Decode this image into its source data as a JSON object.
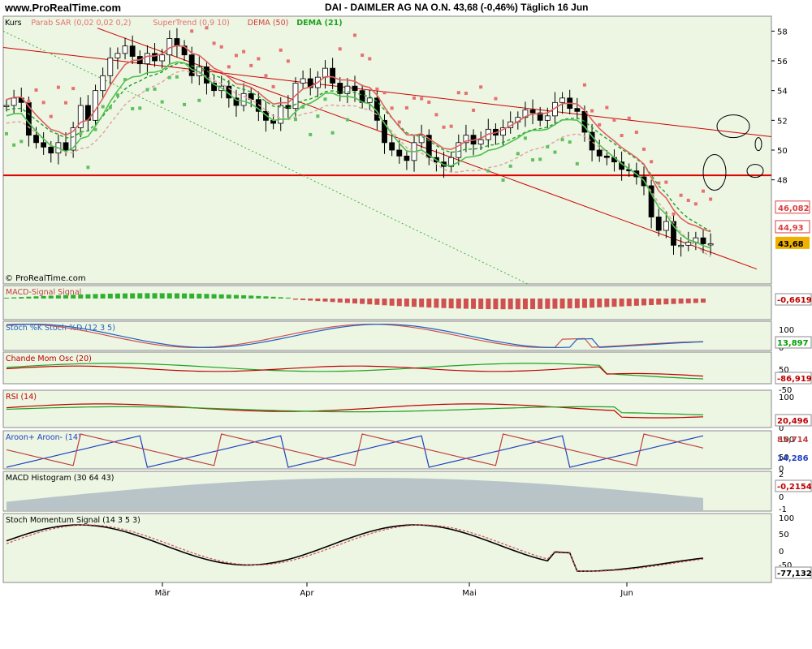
{
  "header": {
    "site": "www.ProRealTime.com",
    "title": "DAI - DAIMLER AG NA O.N.     43,68 (-0,46%)    Täglich  16 Jun"
  },
  "colors": {
    "panel_bg": "#ecf6e3",
    "up": "#ffffff",
    "down": "#000000",
    "sar": "#e87070",
    "supertrend_up": "#50c050",
    "supertrend_down": "#e06060",
    "dema50": "#d84040",
    "dema21": "#20a020",
    "trend": "#d00000",
    "hline": "#e00000",
    "signal_box": "#f0b000"
  },
  "x_labels": [
    "Mär",
    "Apr",
    "Mai",
    "Jun"
  ],
  "chart_data": [
    {
      "type": "candlestick",
      "name": "Kurs",
      "legend": [
        "Kurs",
        "Parab SAR (0,02 0,02 0,2)",
        "SuperTrend (0,9 10)",
        "DEMA (50)",
        "DEMA (21)"
      ],
      "ylim": [
        41,
        59
      ],
      "yticks": [
        58,
        56,
        54,
        52,
        50,
        48
      ],
      "badges": [
        {
          "value": "46,082",
          "color": "#d84040"
        },
        {
          "value": "44,93",
          "color": "#d84040"
        },
        {
          "value": "43,68",
          "color": "#000000",
          "bg": "#f0b000"
        }
      ],
      "hline": 48.3,
      "watermark": "© ProRealTime.com",
      "closes": [
        53.0,
        53.5,
        53.2,
        51.0,
        50.5,
        50.2,
        49.8,
        50.5,
        50.0,
        51.5,
        53.0,
        52.0,
        54.0,
        55.0,
        56.2,
        56.5,
        57.0,
        56.3,
        55.8,
        56.5,
        56.0,
        56.4,
        57.5,
        57.0,
        56.4,
        55.0,
        55.6,
        54.5,
        54.0,
        54.3,
        53.5,
        53.0,
        53.8,
        53.4,
        52.6,
        52.0,
        51.8,
        53.0,
        52.8,
        54.5,
        54.8,
        54.2,
        54.9,
        55.5,
        54.5,
        53.8,
        54.3,
        54.0,
        53.2,
        53.5,
        52.0,
        50.5,
        50.0,
        49.6,
        49.3,
        50.5,
        51.0,
        49.5,
        49.2,
        48.9,
        49.5,
        50.5,
        51.0,
        50.4,
        50.7,
        51.4,
        51.0,
        51.5,
        51.9,
        52.2,
        52.7,
        52.5,
        52.0,
        52.3,
        53.2,
        53.5,
        52.8,
        52.6,
        51.2,
        50.0,
        49.6,
        49.5,
        49.2,
        48.7,
        48.6,
        48.2,
        47.6,
        45.5,
        44.6,
        45.2,
        43.6,
        43.6,
        43.8,
        44.1,
        43.7,
        43.7
      ]
    },
    {
      "type": "area",
      "name": "MACD Signal",
      "legend": "MACD-Signal Signal",
      "badge": "-0,6619"
    },
    {
      "type": "line",
      "name": "Stoch %K",
      "legend": "Stoch %K Stoch %D (12 3 5)",
      "yticks": [
        100,
        50,
        0
      ],
      "badge": "13,897"
    },
    {
      "type": "line",
      "name": "Chande Mom Osc",
      "legend": "Chande Mom Osc (20)",
      "yticks": [
        50,
        0,
        -50
      ],
      "badge": "-86,919"
    },
    {
      "type": "line",
      "name": "RSI",
      "legend": "RSI (14)",
      "yticks": [
        100,
        50,
        0
      ],
      "badge": "20,496"
    },
    {
      "type": "area",
      "name": "Aroon",
      "legend": "Aroon+ Aroon- (14)",
      "yticks": [
        100,
        50,
        0
      ],
      "badges": [
        "85,714",
        "14,286"
      ]
    },
    {
      "type": "area",
      "name": "MACD Histogram",
      "legend": "MACD Histogram (30 64 43)",
      "yticks": [
        2,
        1,
        0,
        -1
      ],
      "badge": "-0,2154"
    },
    {
      "type": "line",
      "name": "Stoch Momentum",
      "legend": "Stoch Momentum Signal (14 3 5 3)",
      "yticks": [
        100,
        50,
        0,
        -50
      ],
      "badge": "-77,132"
    }
  ]
}
